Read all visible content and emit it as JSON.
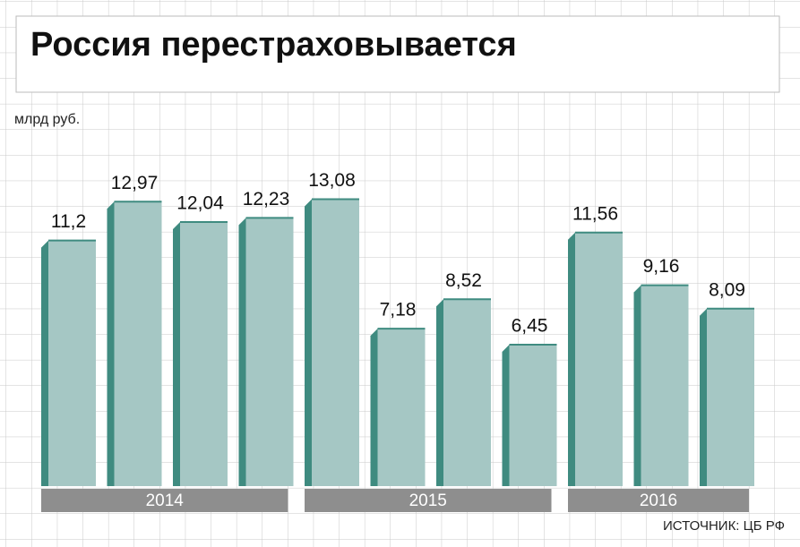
{
  "chart_data": {
    "type": "bar",
    "title": "Россия перестраховывается",
    "y_label": "млрд руб.",
    "source": "ИСТОЧНИК: ЦБ РФ",
    "categories": [
      null,
      null,
      null,
      null,
      null,
      null,
      null,
      null,
      null,
      null,
      null
    ],
    "values": [
      11.2,
      12.97,
      12.04,
      12.23,
      13.08,
      7.18,
      8.52,
      6.45,
      11.56,
      9.16,
      8.09
    ],
    "value_labels": [
      "11,2",
      "12,97",
      "12,04",
      "12,23",
      "13,08",
      "7,18",
      "8,52",
      "6,45",
      "11,56",
      "9,16",
      "8,09"
    ],
    "groups": [
      {
        "name": "2014",
        "size": 4
      },
      {
        "name": "2015",
        "size": 4
      },
      {
        "name": "2016",
        "size": 3
      }
    ],
    "color": "#a5c7c4",
    "side_color": "#3f8b80",
    "group_color": "#8e8e8e",
    "ylim": [
      0,
      14
    ]
  }
}
